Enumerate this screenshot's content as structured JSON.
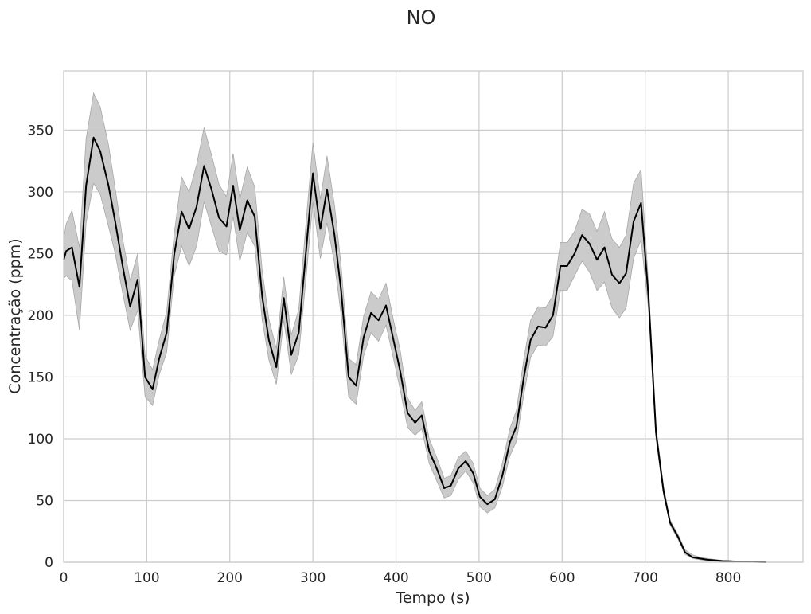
{
  "chart_data": {
    "type": "line",
    "title": "NO",
    "xlabel": "Tempo (s)",
    "ylabel": "Concentração (ppm)",
    "xlim": [
      0,
      890
    ],
    "ylim": [
      0,
      398
    ],
    "xticks": [
      0,
      100,
      200,
      300,
      400,
      500,
      600,
      700,
      800
    ],
    "yticks": [
      0,
      50,
      100,
      150,
      200,
      250,
      300,
      350
    ],
    "grid": true,
    "legend": "none",
    "colors": {
      "line": "#000000",
      "band": "#c8c8c8",
      "band_edge": "#a8a8a8",
      "grid": "#cccccc",
      "frame": "#cccccc"
    },
    "series": [
      {
        "x": [
          0,
          3,
          10,
          19,
          27,
          36,
          44,
          54,
          62,
          71,
          80,
          89,
          98,
          107,
          115,
          124,
          133,
          142,
          151,
          160,
          169,
          178,
          187,
          196,
          204,
          212,
          221,
          230,
          239,
          247,
          256,
          265,
          274,
          283,
          292,
          300,
          309,
          317,
          326,
          334,
          343,
          352,
          361,
          370,
          379,
          388,
          397,
          405,
          414,
          423,
          431,
          440,
          449,
          458,
          466,
          475,
          484,
          493,
          501,
          510,
          519,
          528,
          537,
          545,
          554,
          562,
          571,
          580,
          589,
          598,
          606,
          615,
          624,
          633,
          642,
          651,
          660,
          669,
          677,
          686,
          695,
          704,
          713,
          722,
          730,
          740,
          748,
          757,
          766,
          775,
          784,
          793,
          802,
          810,
          820,
          830,
          840,
          846
        ],
        "y": [
          245,
          252,
          255,
          223,
          305,
          344,
          333,
          305,
          276,
          240,
          207,
          229,
          150,
          140,
          165,
          186,
          249,
          284,
          270,
          288,
          321,
          302,
          279,
          272,
          305,
          269,
          293,
          280,
          215,
          180,
          158,
          214,
          168,
          186,
          254,
          315,
          270,
          302,
          265,
          220,
          150,
          143,
          182,
          202,
          196,
          208,
          180,
          155,
          121,
          113,
          119,
          90,
          76,
          60,
          62,
          76,
          82,
          72,
          53,
          47,
          51,
          70,
          97,
          110,
          150,
          180,
          191,
          190,
          200,
          240,
          240,
          250,
          265,
          258,
          245,
          255,
          233,
          226,
          234,
          276,
          291,
          215,
          105,
          58,
          32,
          20,
          8,
          4,
          3,
          2,
          1.5,
          1,
          0.8,
          0.5,
          0.4,
          0.3,
          0.2,
          0.1
        ],
        "lower": [
          230,
          232,
          228,
          188,
          275,
          307,
          298,
          272,
          250,
          218,
          188,
          204,
          134,
          127,
          152,
          170,
          232,
          256,
          240,
          256,
          292,
          272,
          252,
          249,
          280,
          244,
          267,
          256,
          196,
          164,
          144,
          196,
          152,
          168,
          232,
          292,
          246,
          275,
          242,
          200,
          134,
          128,
          167,
          186,
          179,
          192,
          165,
          140,
          109,
          103,
          108,
          80,
          66,
          52,
          54,
          67,
          74,
          64,
          45,
          40,
          44,
          61,
          86,
          98,
          136,
          166,
          176,
          175,
          183,
          220,
          220,
          232,
          244,
          235,
          220,
          227,
          206,
          198,
          206,
          246,
          261,
          205,
          100,
          55,
          30,
          18,
          6.5,
          3,
          2,
          1.2,
          0.8,
          0.5,
          0.3,
          0.1,
          0,
          0,
          0,
          0
        ],
        "upper": [
          262,
          274,
          285,
          255,
          343,
          380,
          369,
          338,
          303,
          262,
          228,
          250,
          167,
          156,
          180,
          203,
          266,
          312,
          300,
          322,
          352,
          330,
          306,
          296,
          331,
          294,
          320,
          304,
          236,
          197,
          173,
          231,
          184,
          205,
          277,
          340,
          294,
          329,
          289,
          240,
          165,
          160,
          199,
          219,
          213,
          226,
          196,
          172,
          133,
          123,
          130,
          100,
          85,
          68,
          70,
          85,
          90,
          80,
          60,
          54,
          59,
          80,
          108,
          123,
          165,
          196,
          207,
          206,
          216,
          259,
          259,
          268,
          286,
          282,
          268,
          284,
          262,
          255,
          265,
          307,
          318,
          225,
          110,
          62,
          34,
          22,
          10,
          6,
          4,
          3,
          2.2,
          1.5,
          1.3,
          1,
          0.9,
          0.8,
          0.6,
          0.2
        ]
      }
    ]
  }
}
